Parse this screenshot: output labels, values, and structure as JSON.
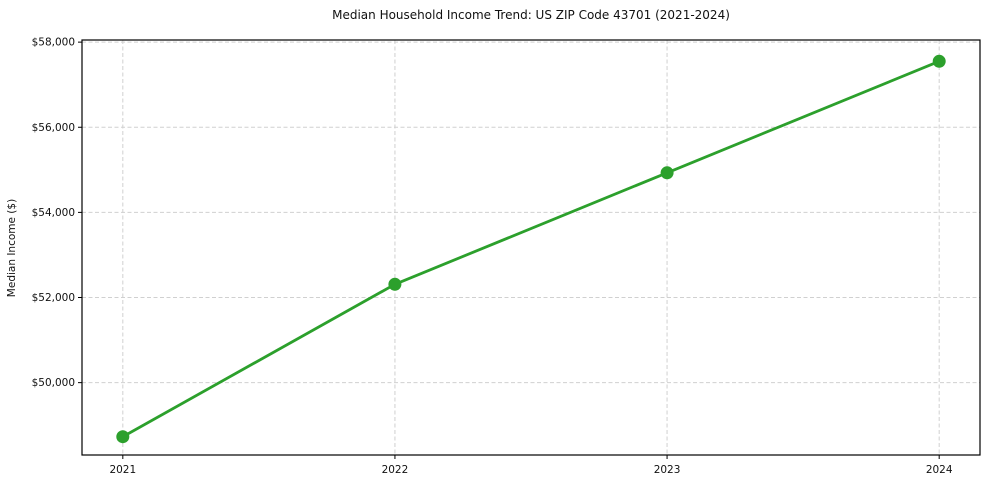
{
  "chart_data": {
    "type": "line",
    "title": "Median Household Income Trend: US ZIP Code 43701 (2021-2024)",
    "xlabel": "",
    "ylabel": "Median Income ($)",
    "x": [
      2021,
      2022,
      2023,
      2024
    ],
    "x_tick_labels": [
      "2021",
      "2022",
      "2023",
      "2024"
    ],
    "series": [
      {
        "name": "Median Household Income",
        "values": [
          48730,
          52310,
          54930,
          57550
        ],
        "color": "#2ca02c",
        "marker": "circle",
        "marker_radius": 6.5,
        "line_width": 2.8
      }
    ],
    "y_ticks": [
      50000,
      52000,
      54000,
      56000,
      58000
    ],
    "y_tick_labels": [
      "$50,000",
      "$52,000",
      "$54,000",
      "$56,000",
      "$58,000"
    ],
    "ylim": [
      48300,
      58050
    ],
    "xlim": [
      2020.85,
      2024.15
    ],
    "grid": true,
    "grid_style": "dashed",
    "legend_position": "none"
  },
  "colors": {
    "background": "#ffffff",
    "line": "#2ca02c",
    "grid": "#d0d0d0",
    "axis": "#000000",
    "text": "#111111"
  }
}
